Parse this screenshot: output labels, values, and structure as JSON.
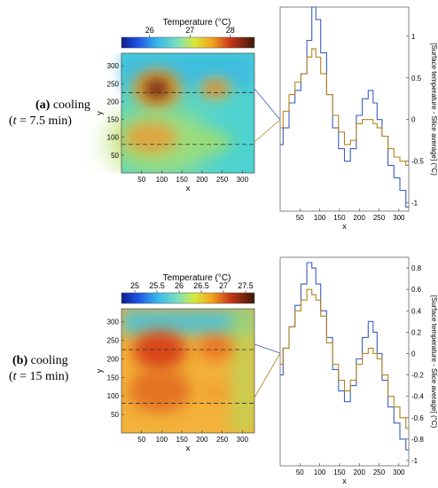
{
  "panels": [
    {
      "id": "a",
      "label_letter": "(a)",
      "label_text": "cooling",
      "time_prefix": "(",
      "time_var": "t",
      "time_value": " = 7.5 min)",
      "colorbar": {
        "title": "Temperature (°C)",
        "ticks": [
          "26",
          "27",
          "28"
        ],
        "tick_values": [
          26,
          27,
          28
        ],
        "range": [
          25.3,
          28.6
        ]
      },
      "heatmap": {
        "xlabel": "x",
        "ylabel": "y",
        "xticks": [
          50,
          100,
          150,
          200,
          250,
          300
        ],
        "yticks": [
          50,
          100,
          150,
          200,
          250,
          300
        ],
        "xlim": [
          0,
          330
        ],
        "ylim": [
          0,
          335
        ],
        "slice_lines_y": [
          225,
          80
        ]
      },
      "chart_data": {
        "type": "line",
        "xlabel": "x",
        "ylabel": "[Surface temperature - Slice average] (°C)",
        "xlim": [
          0,
          325
        ],
        "ylim": [
          -1.1,
          1.35
        ],
        "xticks": [
          50,
          100,
          150,
          200,
          250,
          300
        ],
        "yticks": [
          -1,
          -0.5,
          0,
          0.5,
          1
        ],
        "ytick_labels": [
          "-1",
          "-0.5",
          "0",
          "0.5",
          "1"
        ],
        "series": [
          {
            "color": "#3a5fc0",
            "x": [
              0,
              15,
              30,
              45,
              60,
              75,
              85,
              95,
              110,
              125,
              140,
              155,
              170,
              185,
              200,
              215,
              230,
              240,
              250,
              265,
              280,
              295,
              310,
              325
            ],
            "y": [
              -0.3,
              -0.1,
              0.2,
              0.35,
              0.55,
              0.95,
              1.35,
              1.2,
              0.8,
              0.3,
              -0.1,
              -0.35,
              -0.5,
              -0.35,
              0.05,
              0.25,
              0.35,
              0.2,
              0.0,
              -0.2,
              -0.55,
              -0.7,
              -0.85,
              -1.05
            ]
          },
          {
            "color": "#b5831e",
            "x": [
              0,
              15,
              30,
              45,
              60,
              75,
              85,
              95,
              110,
              125,
              140,
              155,
              170,
              185,
              200,
              215,
              230,
              240,
              250,
              265,
              280,
              295,
              310,
              325
            ],
            "y": [
              -0.1,
              0.1,
              0.3,
              0.45,
              0.55,
              0.75,
              0.85,
              0.75,
              0.55,
              0.3,
              0.05,
              -0.15,
              -0.3,
              -0.25,
              -0.05,
              0.0,
              0.0,
              -0.05,
              -0.1,
              -0.2,
              -0.35,
              -0.45,
              -0.5,
              -0.55
            ]
          }
        ]
      }
    },
    {
      "id": "b",
      "label_letter": "(b)",
      "label_text": "cooling",
      "time_prefix": "(",
      "time_var": "t",
      "time_value": " = 15 min)",
      "colorbar": {
        "title": "Temperature (°C)",
        "ticks": [
          "25",
          "25.5",
          "26",
          "26.5",
          "27",
          "27.5"
        ],
        "tick_values": [
          25,
          25.5,
          26,
          26.5,
          27,
          27.5
        ],
        "range": [
          24.7,
          27.7
        ]
      },
      "heatmap": {
        "xlabel": "x",
        "ylabel": "y",
        "xticks": [
          50,
          100,
          150,
          200,
          250,
          300
        ],
        "yticks": [
          50,
          100,
          150,
          200,
          250,
          300
        ],
        "xlim": [
          0,
          330
        ],
        "ylim": [
          0,
          335
        ],
        "slice_lines_y": [
          225,
          80
        ]
      },
      "chart_data": {
        "type": "line",
        "xlabel": "x",
        "ylabel": "[Surface temperature - Slice average] (°C)",
        "xlim": [
          0,
          325
        ],
        "ylim": [
          -1.05,
          0.9
        ],
        "xticks": [
          50,
          100,
          150,
          200,
          250,
          300
        ],
        "yticks": [
          -1,
          -0.8,
          -0.6,
          -0.4,
          -0.2,
          0,
          0.2,
          0.4,
          0.6,
          0.8
        ],
        "ytick_labels": [
          "-1",
          "-0.8",
          "-0.6",
          "-0.4",
          "-0.2",
          "0",
          "0.2",
          "0.4",
          "0.6",
          "0.8"
        ],
        "series": [
          {
            "color": "#3a5fc0",
            "x": [
              0,
              15,
              30,
              45,
              60,
              75,
              85,
              95,
              110,
              125,
              140,
              155,
              170,
              185,
              200,
              215,
              230,
              240,
              250,
              265,
              280,
              295,
              310,
              325
            ],
            "y": [
              -0.2,
              0.05,
              0.25,
              0.45,
              0.65,
              0.85,
              0.8,
              0.65,
              0.4,
              0.15,
              -0.15,
              -0.35,
              -0.45,
              -0.3,
              -0.05,
              0.15,
              0.3,
              0.2,
              0.0,
              -0.25,
              -0.5,
              -0.65,
              -0.8,
              -0.9
            ]
          },
          {
            "color": "#b5831e",
            "x": [
              0,
              15,
              30,
              45,
              60,
              75,
              85,
              95,
              110,
              125,
              140,
              155,
              170,
              185,
              200,
              215,
              230,
              240,
              250,
              265,
              280,
              295,
              310,
              325
            ],
            "y": [
              -0.1,
              0.05,
              0.25,
              0.4,
              0.5,
              0.6,
              0.55,
              0.5,
              0.35,
              0.1,
              -0.1,
              -0.25,
              -0.35,
              -0.25,
              -0.1,
              0.0,
              0.05,
              0.0,
              -0.05,
              -0.2,
              -0.4,
              -0.5,
              -0.6,
              -0.7
            ]
          }
        ]
      }
    }
  ]
}
